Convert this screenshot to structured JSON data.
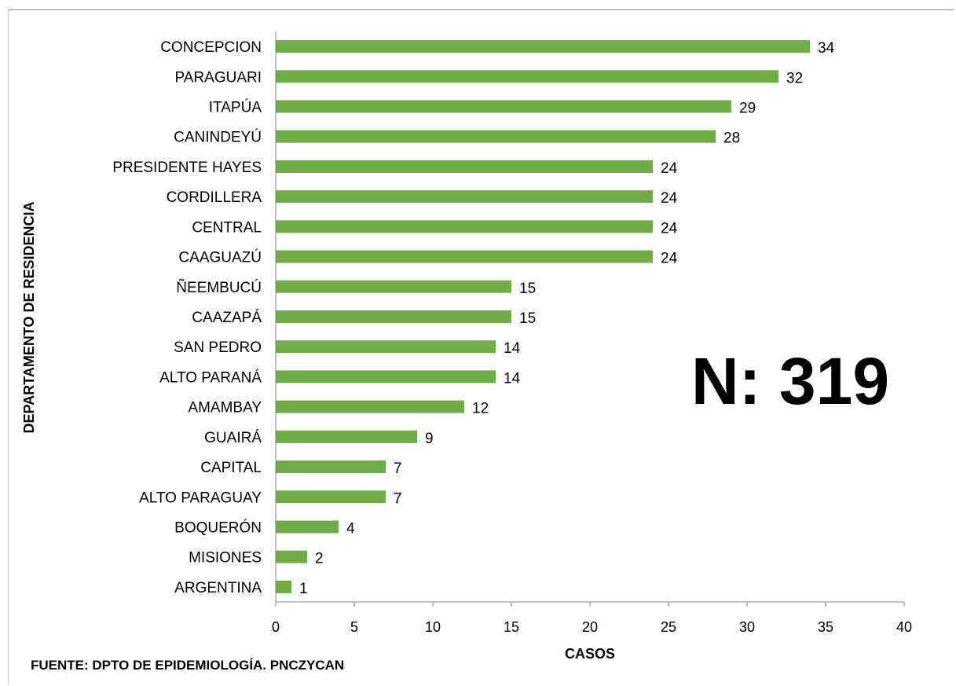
{
  "chart_data": {
    "type": "bar",
    "orientation": "horizontal",
    "categories": [
      "CONCEPCION",
      "PARAGUARI",
      "ITAPÚA",
      "CANINDEYÚ",
      "PRESIDENTE HAYES",
      "CORDILLERA",
      "CENTRAL",
      "CAAGUAZÚ",
      "ÑEEMBUCÚ",
      "CAAZAPÁ",
      "SAN PEDRO",
      "ALTO PARANÁ",
      "AMAMBAY",
      "GUAIRÁ",
      "CAPITAL",
      "ALTO PARAGUAY",
      "BOQUERÓN",
      "MISIONES",
      "ARGENTINA"
    ],
    "values": [
      34,
      32,
      29,
      28,
      24,
      24,
      24,
      24,
      15,
      15,
      14,
      14,
      12,
      9,
      7,
      7,
      4,
      2,
      1
    ],
    "xlabel": "CASOS",
    "ylabel": "DEPARTAMENTO DE RESIDENCIA",
    "xlim": [
      0,
      40
    ],
    "xticks": [
      0,
      5,
      10,
      15,
      20,
      25,
      30,
      35,
      40
    ],
    "grid": false,
    "data_labels": true,
    "bar_color": "#70ad47"
  },
  "annotation": "N: 319",
  "source": "FUENTE: DPTO DE EPIDEMIOLOGÍA. PNCZYCAN"
}
